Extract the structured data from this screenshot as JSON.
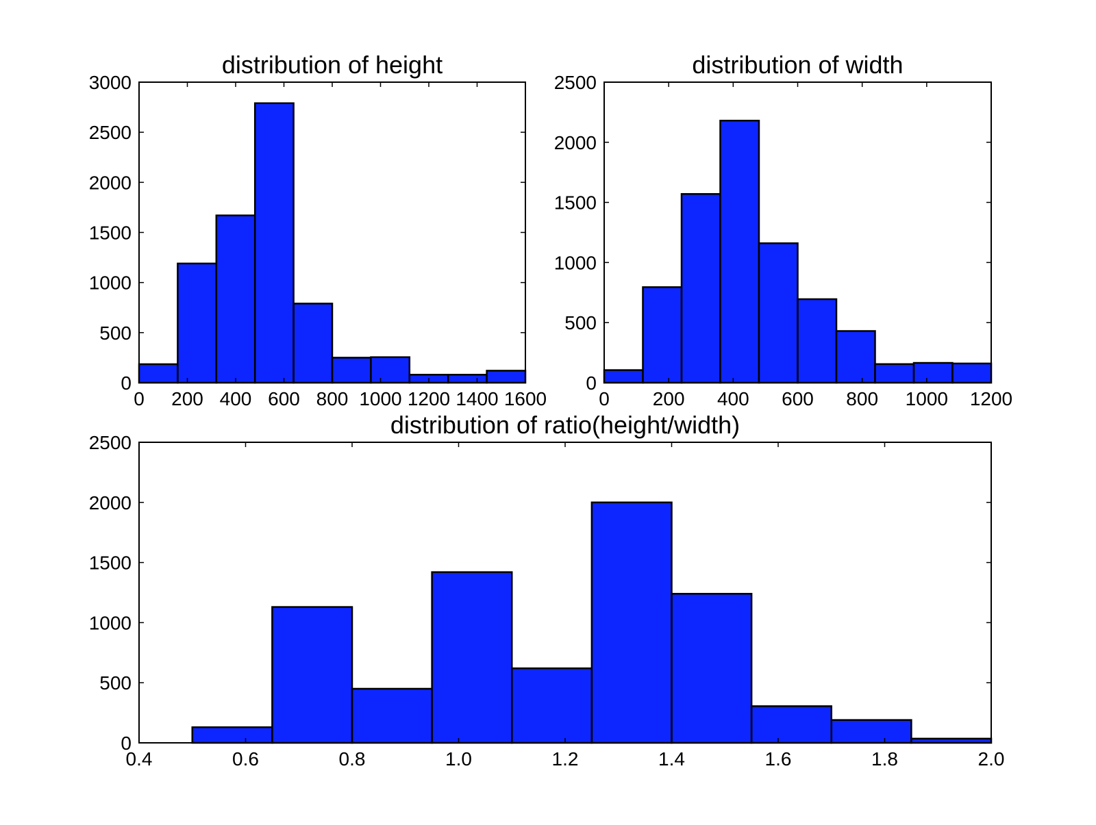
{
  "figure": {
    "bar_color": "#0d26ff",
    "edge_color": "#000000",
    "background": "#ffffff"
  },
  "chart_data": [
    {
      "id": "height",
      "type": "bar",
      "title": "distribution of height",
      "xlabel": "",
      "ylabel": "",
      "xlim": [
        0,
        1600
      ],
      "ylim": [
        0,
        3000
      ],
      "xticks": [
        0,
        200,
        400,
        600,
        800,
        1000,
        1200,
        1400,
        1600
      ],
      "xtick_labels": [
        "0",
        "200",
        "400",
        "600",
        "800",
        "1000",
        "1200",
        "1400",
        "1600"
      ],
      "yticks": [
        0,
        500,
        1000,
        1500,
        2000,
        2500,
        3000
      ],
      "ytick_labels": [
        "0",
        "500",
        "1000",
        "1500",
        "2000",
        "2500",
        "3000"
      ],
      "bin_edges": [
        0,
        160,
        320,
        480,
        640,
        800,
        960,
        1120,
        1280,
        1440,
        1600
      ],
      "values": [
        185,
        1190,
        1670,
        2790,
        790,
        250,
        255,
        80,
        80,
        120
      ],
      "grid": false,
      "legend": "none"
    },
    {
      "id": "width",
      "type": "bar",
      "title": "distribution of width",
      "xlabel": "",
      "ylabel": "",
      "xlim": [
        0,
        1200
      ],
      "ylim": [
        0,
        2500
      ],
      "xticks": [
        0,
        200,
        400,
        600,
        800,
        1000,
        1200
      ],
      "xtick_labels": [
        "0",
        "200",
        "400",
        "600",
        "800",
        "1000",
        "1200"
      ],
      "yticks": [
        0,
        500,
        1000,
        1500,
        2000,
        2500
      ],
      "ytick_labels": [
        "0",
        "500",
        "1000",
        "1500",
        "2000",
        "2500"
      ],
      "bin_edges": [
        0,
        120,
        240,
        360,
        480,
        600,
        720,
        840,
        960,
        1080,
        1200
      ],
      "values": [
        105,
        795,
        1570,
        2180,
        1160,
        695,
        430,
        155,
        165,
        160
      ],
      "grid": false,
      "legend": "none"
    },
    {
      "id": "ratio",
      "type": "bar",
      "title": "distribution of ratio(height/width)",
      "xlabel": "",
      "ylabel": "",
      "xlim": [
        0.4,
        2.0
      ],
      "ylim": [
        0,
        2500
      ],
      "xticks": [
        0.4,
        0.6,
        0.8,
        1.0,
        1.2,
        1.4,
        1.6,
        1.8,
        2.0
      ],
      "xtick_labels": [
        "0.4",
        "0.6",
        "0.8",
        "1.0",
        "1.2",
        "1.4",
        "1.6",
        "1.8",
        "2.0"
      ],
      "yticks": [
        0,
        500,
        1000,
        1500,
        2000,
        2500
      ],
      "ytick_labels": [
        "0",
        "500",
        "1000",
        "1500",
        "2000",
        "2500"
      ],
      "bin_edges": [
        0.4,
        0.5,
        0.65,
        0.8,
        0.95,
        1.1,
        1.25,
        1.4,
        1.55,
        1.7,
        1.85,
        2.0
      ],
      "values": [
        0,
        130,
        1130,
        450,
        1420,
        620,
        2000,
        1240,
        305,
        190,
        35
      ],
      "grid": false,
      "legend": "none"
    }
  ]
}
